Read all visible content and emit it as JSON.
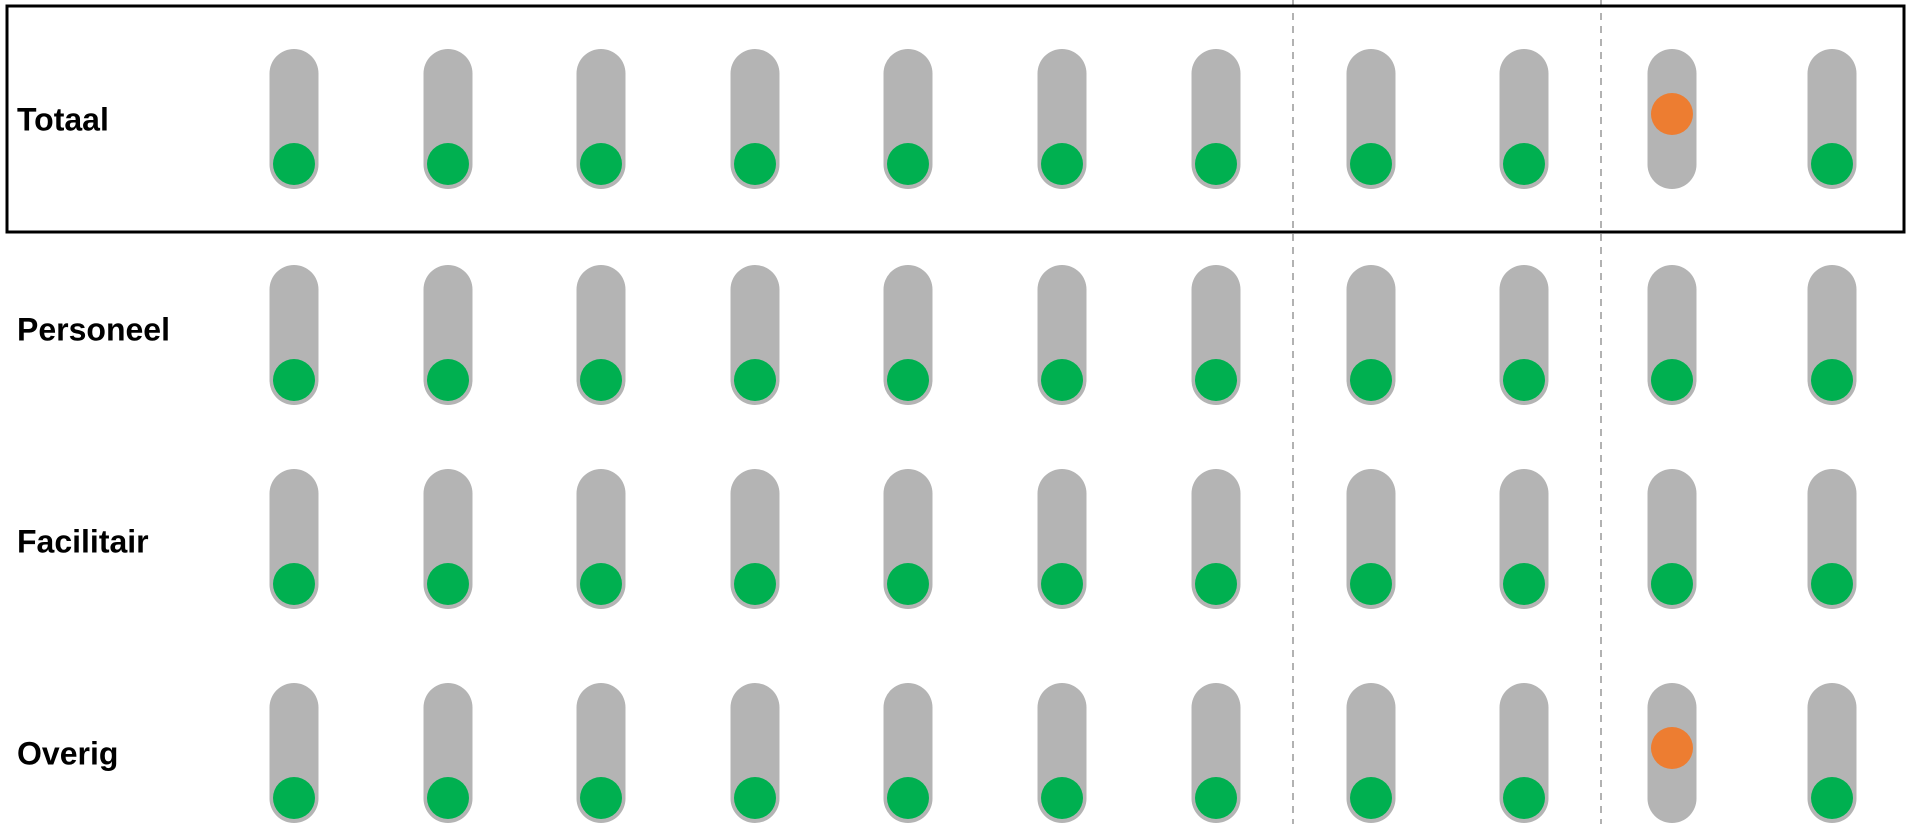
{
  "palette": [
    "#00b050",
    "#ed7d31"
  ],
  "rows": [
    {
      "label": "Totaal",
      "lights": [
        "#00b050",
        "#00b050",
        "#00b050",
        "#00b050",
        "#00b050",
        "#00b050",
        "#00b050",
        "#00b050",
        "#00b050",
        "#ed7d31",
        "#00b050"
      ]
    },
    {
      "label": "Personeel",
      "lights": [
        "#00b050",
        "#00b050",
        "#00b050",
        "#00b050",
        "#00b050",
        "#00b050",
        "#00b050",
        "#00b050",
        "#00b050",
        "#00b050",
        "#00b050"
      ]
    },
    {
      "label": "Facilitair",
      "lights": [
        "#00b050",
        "#00b050",
        "#00b050",
        "#00b050",
        "#00b050",
        "#00b050",
        "#00b050",
        "#00b050",
        "#00b050",
        "#00b050",
        "#00b050"
      ]
    },
    {
      "label": "Overig",
      "lights": [
        "#00b050",
        "#00b050",
        "#00b050",
        "#00b050",
        "#00b050",
        "#00b050",
        "#00b050",
        "#00b050",
        "#00b050",
        "#ed7d31",
        "#00b050"
      ]
    }
  ]
}
